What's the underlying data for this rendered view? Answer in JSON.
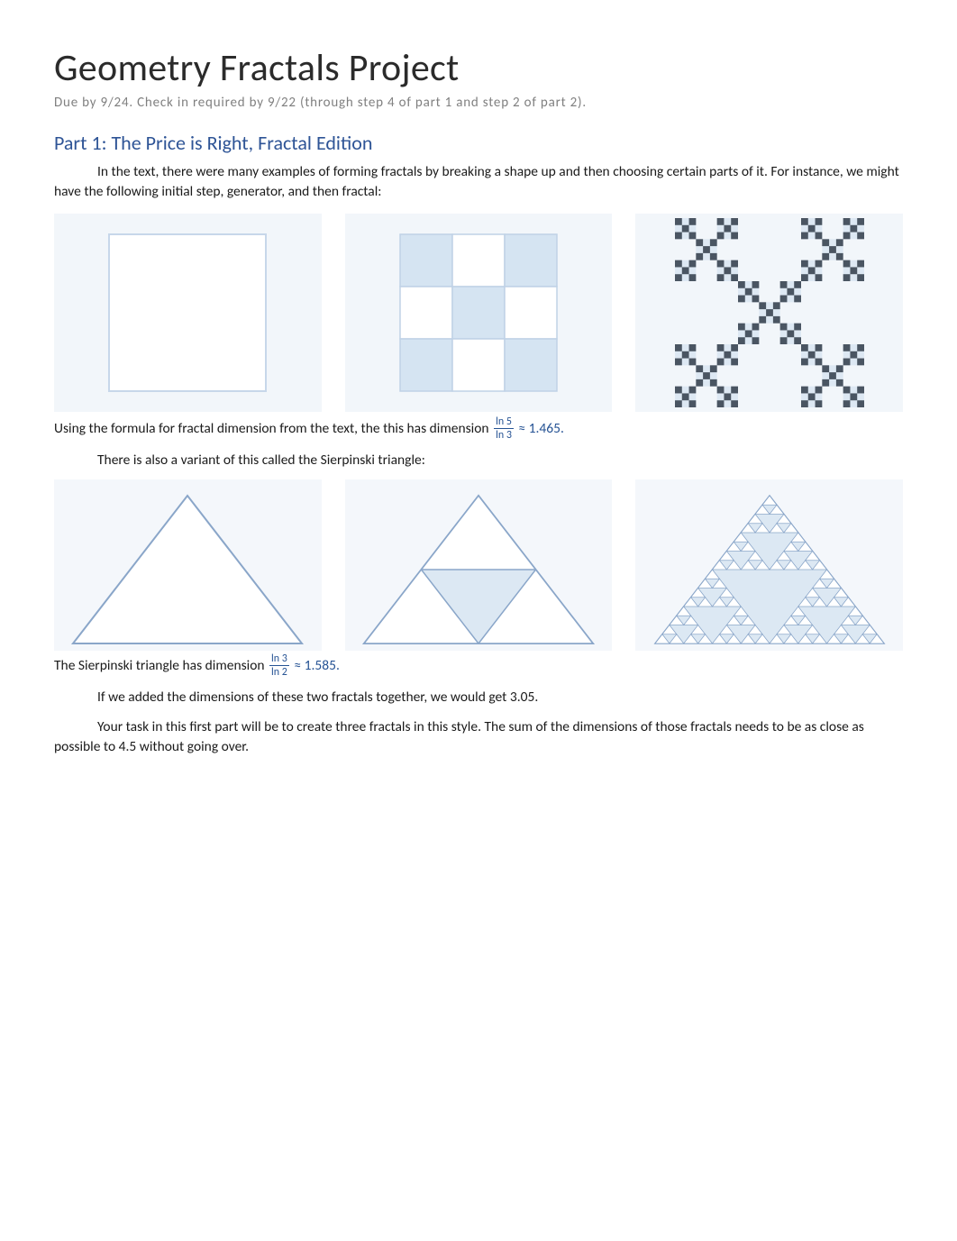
{
  "colors": {
    "panel_bg": "#f2f6fa",
    "panel_bg2": "#f4f7fb",
    "shape_light": "#d5e4f2",
    "shape_border": "#6d92c0",
    "tri_border": "#7d9cc2",
    "title_color": "#2b2b2b",
    "subtitle_color": "#808080",
    "section_color": "#2e5496",
    "text_color": "#1a1a1a",
    "math_color": "#265394"
  },
  "title": "Geometry Fractals Project",
  "subtitle": "Due by 9/24. Check in required by 9/22 (through step 4 of part 1 and step 2 of part 2).",
  "section1": {
    "header": "Part 1: The Price is Right, Fractal Edition",
    "p1": "In the text, there were many examples of forming fractals by breaking a shape up and then choosing certain parts of it. For instance, we might have the following initial step, generator, and then fractal:",
    "p2_pre": "Using the formula for fractal dimension from the text, the this has dimension ",
    "frac1_top": "ln 5",
    "frac1_bot": "ln 3",
    "p2_post": " ≈ 1.465.",
    "p3": "There is also a variant of this called the Sierpinski triangle:",
    "p4_pre": "The Sierpinski triangle has dimension ",
    "frac2_top": "ln 3",
    "frac2_bot": "ln 2",
    "p4_post": " ≈ 1.585.",
    "p5": "If we added the dimensions of these two fractals together, we would get 3.05.",
    "p6": "Your task in this first part will be to create three fractals in this style. The sum of the dimensions of those fractals needs to be as close as possible to 4.5 without going over."
  },
  "figures": {
    "square": {
      "type": "initial-square",
      "size": 180,
      "fill": "#ffffff",
      "border": "#b9cde4",
      "border_width": 2
    },
    "generator": {
      "type": "3x3-grid",
      "size": 180,
      "cell_fill_kept": "#d5e4f2",
      "cell_fill_removed": "#ffffff",
      "border": "#c4d4e8",
      "kept_cells": [
        [
          0,
          0
        ],
        [
          0,
          2
        ],
        [
          1,
          1
        ],
        [
          2,
          0
        ],
        [
          2,
          2
        ]
      ]
    },
    "vicsek_fractal": {
      "type": "vicsek-diagonal",
      "size": 200,
      "depth": 3,
      "color_dark": "#3d4854",
      "color_light": "#d7e3f0"
    },
    "sierpinski_stages": {
      "type": "sierpinski-triangle-stages",
      "height": 170,
      "stages": [
        0,
        1,
        3
      ],
      "stroke": "#7d9cc2",
      "fill": "#ffffff",
      "bg_fill": "#d9e5f2"
    }
  }
}
